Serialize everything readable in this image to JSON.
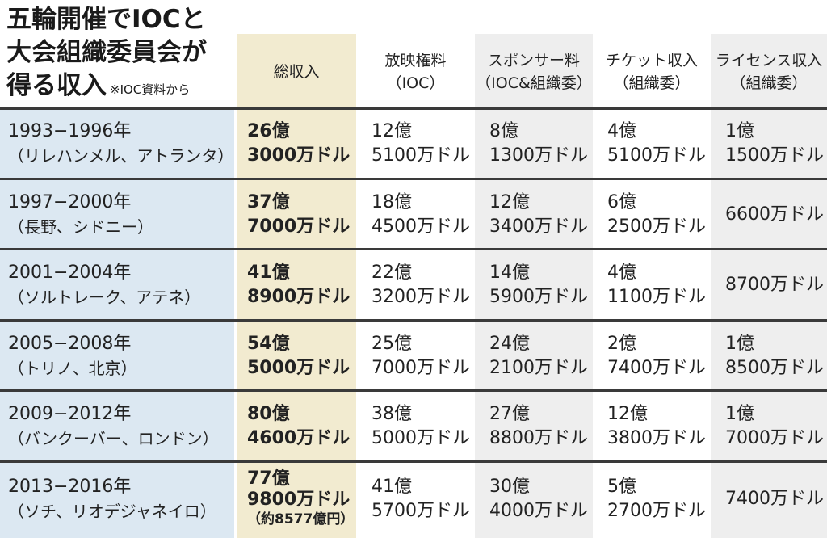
{
  "title": {
    "line1": "五輪開催でIOCと",
    "line2": "大会組織委員会が",
    "line3": "得る収入",
    "note": "※IOC資料から"
  },
  "headers": {
    "total": "総収入",
    "broadcast": [
      "放映権料",
      "（IOC）"
    ],
    "sponsor": [
      "スポンサー料",
      "（IOC&組織委）"
    ],
    "ticket": [
      "チケット収入",
      "（組織委）"
    ],
    "license": [
      "ライセンス収入",
      "（組織委）"
    ]
  },
  "rows": [
    {
      "period": "1993−1996年",
      "host": "（リレハンメル、アトランタ）",
      "total": [
        "26億",
        "3000万ドル"
      ],
      "broadcast": [
        "12億",
        "5100万ドル"
      ],
      "sponsor": [
        "8億",
        "1300万ドル"
      ],
      "ticket": [
        "4億",
        "5100万ドル"
      ],
      "license": [
        "1億",
        "1500万ドル"
      ]
    },
    {
      "period": "1997−2000年",
      "host": "（長野、シドニー）",
      "total": [
        "37億",
        "7000万ドル"
      ],
      "broadcast": [
        "18億",
        "4500万ドル"
      ],
      "sponsor": [
        "12億",
        "3400万ドル"
      ],
      "ticket": [
        "6億",
        "2500万ドル"
      ],
      "license": [
        "6600万ドル"
      ]
    },
    {
      "period": "2001−2004年",
      "host": "（ソルトレーク、アテネ）",
      "total": [
        "41億",
        "8900万ドル"
      ],
      "broadcast": [
        "22億",
        "3200万ドル"
      ],
      "sponsor": [
        "14億",
        "5900万ドル"
      ],
      "ticket": [
        "4億",
        "1100万ドル"
      ],
      "license": [
        "8700万ドル"
      ]
    },
    {
      "period": "2005−2008年",
      "host": "（トリノ、北京）",
      "total": [
        "54億",
        "5000万ドル"
      ],
      "broadcast": [
        "25億",
        "7000万ドル"
      ],
      "sponsor": [
        "24億",
        "2100万ドル"
      ],
      "ticket": [
        "2億",
        "7400万ドル"
      ],
      "license": [
        "1億",
        "8500万ドル"
      ]
    },
    {
      "period": "2009−2012年",
      "host": "（バンクーバー、ロンドン）",
      "total": [
        "80億",
        "4600万ドル"
      ],
      "broadcast": [
        "38億",
        "5000万ドル"
      ],
      "sponsor": [
        "27億",
        "8800万ドル"
      ],
      "ticket": [
        "12億",
        "3800万ドル"
      ],
      "license": [
        "1億",
        "7000万ドル"
      ]
    },
    {
      "period": "2013−2016年",
      "host": "（ソチ、リオデジャネイロ）",
      "total": [
        "77億",
        "9800万ドル"
      ],
      "total_yen": "（約8577億円）",
      "broadcast": [
        "41億",
        "5700万ドル"
      ],
      "sponsor": [
        "30億",
        "4000万ドル"
      ],
      "ticket": [
        "5億",
        "2700万ドル"
      ],
      "license": [
        "7400万ドル"
      ]
    }
  ]
}
